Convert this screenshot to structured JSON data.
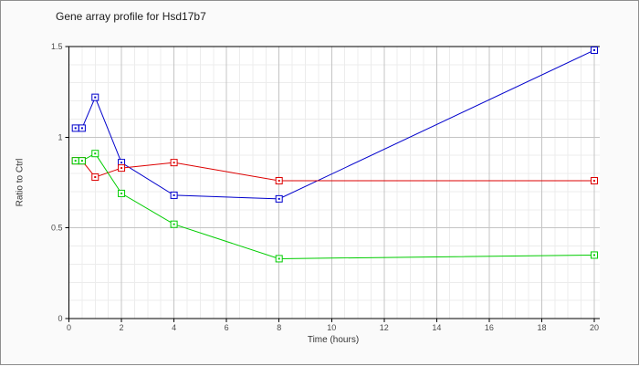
{
  "window": {
    "background": "#fafafa",
    "border_color": "#8f8f8f",
    "plot_background": "#ffffff"
  },
  "chart_data": {
    "type": "line",
    "title": "Gene array profile for Hsd17b7",
    "xlabel": "Time (hours)",
    "ylabel": "Ratio to Ctrl",
    "xlim": [
      0,
      20.2
    ],
    "ylim": [
      0,
      1.5
    ],
    "x_ticks": [
      0,
      2,
      4,
      6,
      8,
      10,
      12,
      14,
      16,
      18,
      20
    ],
    "x_tick_labels": [
      "0",
      "2",
      "4",
      "6",
      "8",
      "10",
      "12",
      "14",
      "16",
      "18",
      "20"
    ],
    "y_ticks": [
      0,
      0.5,
      1,
      1.5
    ],
    "y_tick_labels": [
      "0",
      "0.5",
      "1",
      "1.5"
    ],
    "minor_x_step": 0.5,
    "minor_y_step": 0.1,
    "grid": true,
    "legend_position": "none",
    "marker": "open-square",
    "x": [
      0.25,
      0.5,
      1,
      2,
      4,
      8,
      20
    ],
    "series": [
      {
        "name": "series-blue",
        "color": "#0000cc",
        "values": [
          1.05,
          1.05,
          1.22,
          0.86,
          0.68,
          0.66,
          1.48
        ]
      },
      {
        "name": "series-red",
        "color": "#dd0000",
        "values": [
          0.87,
          0.87,
          0.78,
          0.83,
          0.86,
          0.76,
          0.76
        ]
      },
      {
        "name": "series-green",
        "color": "#00cc00",
        "values": [
          0.87,
          0.87,
          0.91,
          0.69,
          0.52,
          0.33,
          0.35
        ]
      }
    ],
    "colors": {
      "axis": "#000000",
      "major_grid": "#c4c4c4",
      "minor_grid": "#ececec",
      "tick_label": "#4a4a4a"
    }
  }
}
